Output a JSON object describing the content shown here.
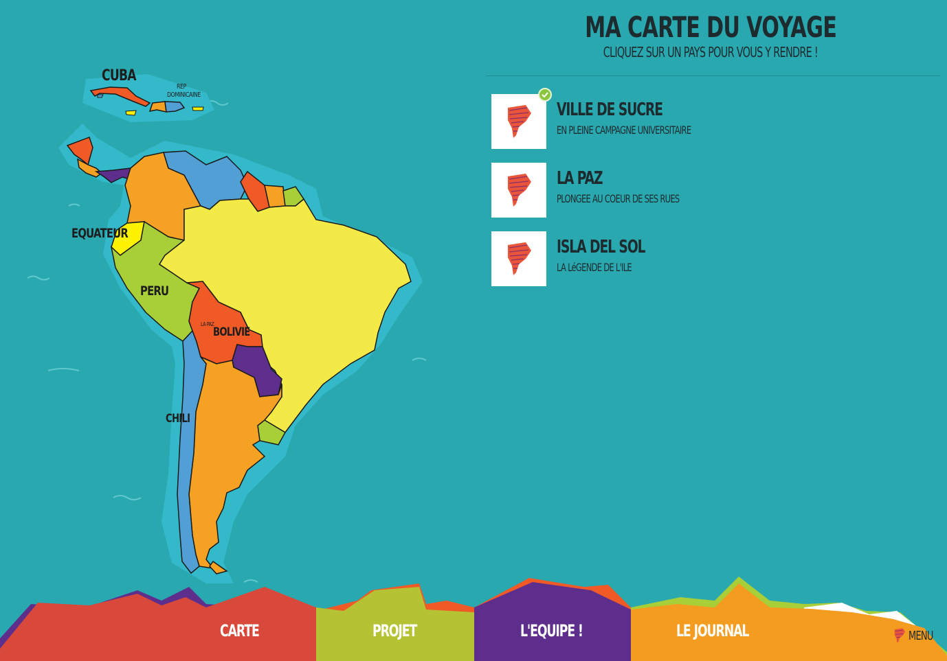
{
  "header": {
    "title": "MA CARTE DU VOYAGE",
    "subtitle": "CLIQUEZ SUR UN PAYS POUR VOUS Y RENDRE !"
  },
  "map": {
    "labels": {
      "cuba": "CUBA",
      "rep_dominicaine_1": "REP",
      "rep_dominicaine_2": "DOMINICAINE",
      "equateur": "EQUATEUR",
      "peru": "PERU",
      "bolivie": "BOLIVIE",
      "la_paz": "LA PAZ",
      "chili": "CHILI"
    },
    "colors": {
      "ocean": "#2aa8b0",
      "shelf": "#33b9c9",
      "orange": "#f5a124",
      "red_orange": "#ef5a27",
      "blue": "#529fd6",
      "yellow": "#f4ea47",
      "green": "#a9cf38",
      "purple": "#5d2e8c",
      "bright_yellow": "#fff200"
    }
  },
  "trips": [
    {
      "title": "VILLE DE SUCRE",
      "subtitle": "EN PLEINE CAMPAGNE UNIVERSITAIRE",
      "visited": true
    },
    {
      "title": "LA PAZ",
      "subtitle": "PLONGEE AU COEUR DE SES RUES",
      "visited": false
    },
    {
      "title": "ISLA DEL SOL",
      "subtitle": "LA LéGENDE DE L'ILE",
      "visited": false
    }
  ],
  "nav": {
    "carte": "CARTE",
    "projet": "PROJET",
    "equipe": "L'EQUIPE !",
    "journal": "LE JOURNAL",
    "menu": "MENU"
  },
  "nav_colors": {
    "carte": "#d9493b",
    "projet": "#b5c234",
    "equipe": "#5d2e8c",
    "journal": "#f39c1f"
  }
}
